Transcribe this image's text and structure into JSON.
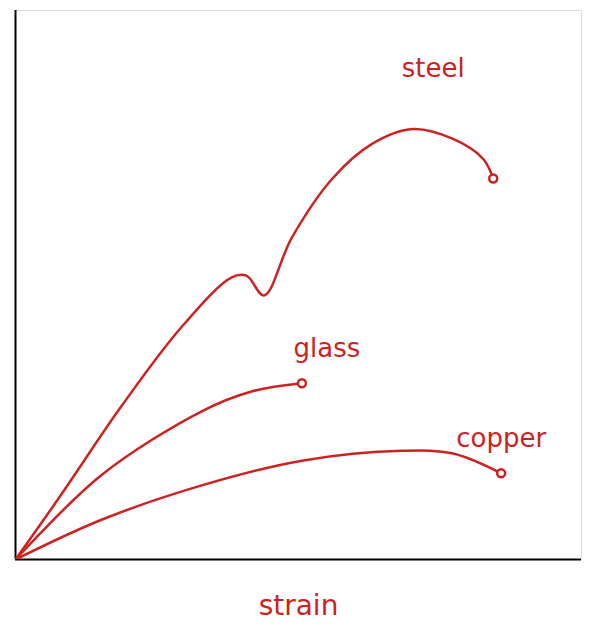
{
  "chart_data": {
    "type": "line",
    "x_label": "strain",
    "xlim": [
      0,
      100
    ],
    "ylim": [
      0,
      100
    ],
    "xticks": [],
    "yticks": [],
    "tick_labels": false,
    "series": [
      {
        "name": "steel",
        "color": "#cc2222",
        "x": [
          0,
          8,
          18.7,
          29.3,
          38.2,
          40.8,
          43.9,
          48.8,
          56,
          63,
          70.2,
          77.3,
          82.6,
          84.4
        ],
        "values": [
          0,
          11.7,
          27.9,
          42.3,
          51.4,
          51.7,
          48.1,
          58.6,
          69.4,
          75.7,
          78.4,
          76.6,
          73,
          69.4
        ]
      },
      {
        "name": "glass",
        "color": "#cc2222",
        "x": [
          0,
          15.1,
          32.9,
          41.7,
          50.6
        ],
        "values": [
          0,
          15.3,
          27,
          30.6,
          32.1
        ]
      },
      {
        "name": "copper",
        "color": "#cc2222",
        "x": [
          0,
          15.1,
          32.9,
          50.6,
          68.4,
          77.3,
          85.8
        ],
        "values": [
          0,
          7.2,
          13.5,
          18,
          19.8,
          19.3,
          15.7
        ]
      }
    ]
  }
}
